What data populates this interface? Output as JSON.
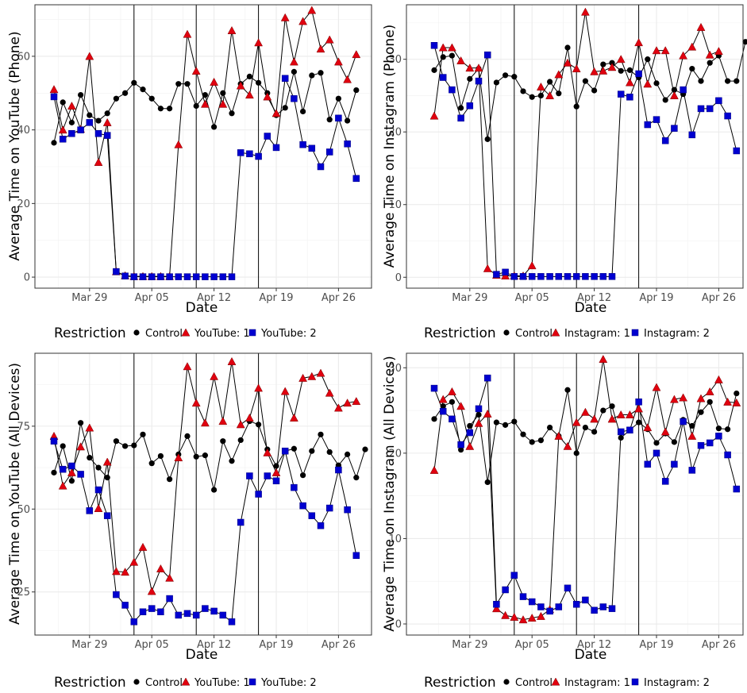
{
  "chart_data": [
    {
      "type": "line",
      "panel": "top-left",
      "xlabel": "Date",
      "ylabel": "Average Time on YouTube (Phone)",
      "ylim": [
        -3,
        74
      ],
      "yticks": [
        0,
        20,
        40,
        60
      ],
      "xticks": [
        "Mar 29",
        "Apr 05",
        "Apr 12",
        "Apr 19",
        "Apr 26"
      ],
      "vlines": [
        "Apr 03",
        "Apr 10",
        "Apr 17"
      ],
      "legend_title": "Restriction",
      "legend_position": "bottom",
      "grid": true,
      "series": [
        {
          "name": "Control",
          "marker": "circle",
          "color": "#000000",
          "values": [
            36.5,
            47.5,
            42,
            49.5,
            44,
            42.5,
            44.5,
            48.5,
            50,
            52.8,
            51,
            48.5,
            45.8,
            45.8,
            52.5,
            52.5,
            46.5,
            49.5,
            40.8,
            50,
            44.5,
            52.5,
            54.5,
            52.8,
            50,
            44,
            46,
            55.8,
            45,
            54.8,
            55.5,
            42.8,
            48.5,
            42.5,
            50.8
          ]
        },
        {
          "name": "YouTube: 1",
          "marker": "triangle",
          "color": "#e0000f",
          "values": [
            51,
            40,
            46.5,
            40.2,
            60,
            31.2,
            42,
            1.5,
            0.4,
            0.2,
            0.2,
            0.2,
            0.2,
            0.2,
            36,
            66,
            56,
            47,
            53,
            47,
            67,
            52,
            49.5,
            63.7,
            49,
            44.5,
            70.5,
            58.5,
            69.5,
            72.5,
            62,
            64.5,
            58.5,
            53.7,
            60.5
          ]
        },
        {
          "name": "YouTube: 2",
          "marker": "square",
          "color": "#0000d0",
          "values": [
            49,
            37.5,
            39,
            40,
            42,
            39,
            38.5,
            1.5,
            0.3,
            0.1,
            0.1,
            0.1,
            0.1,
            0.1,
            0.1,
            0.1,
            0.1,
            0.1,
            0.1,
            0.1,
            0.1,
            33.8,
            33.5,
            32.8,
            38.3,
            35.2,
            54,
            48.5,
            36,
            35,
            30,
            34,
            43.2,
            36.2,
            26.8
          ]
        }
      ]
    },
    {
      "type": "line",
      "panel": "top-right",
      "xlabel": "Date",
      "ylabel": "Average Time on Instagram (Phone)",
      "ylim": [
        -1.5,
        37.5
      ],
      "yticks": [
        0,
        10,
        20,
        30
      ],
      "xticks": [
        "Mar 29",
        "Apr 05",
        "Apr 12",
        "Apr 19",
        "Apr 26"
      ],
      "vlines": [
        "Apr 03",
        "Apr 10",
        "Apr 17"
      ],
      "legend_title": "Restriction",
      "legend_position": "bottom",
      "grid": true,
      "series": [
        {
          "name": "Control",
          "marker": "circle",
          "color": "#000000",
          "values": [
            28.5,
            30.3,
            30.5,
            23.3,
            27.3,
            28.7,
            19,
            26.8,
            27.8,
            27.6,
            25.6,
            24.8,
            25,
            26.9,
            25.3,
            31.6,
            23.5,
            27,
            25.7,
            29.3,
            29.5,
            28.4,
            28.5,
            27.5,
            30,
            26.7,
            24.4,
            25.8,
            25.2,
            28.7,
            27,
            29.5,
            30.5,
            27,
            27,
            32.4
          ]
        },
        {
          "name": "Instagram: 1",
          "marker": "triangle",
          "color": "#e0000f",
          "values": [
            22.2,
            31.6,
            31.6,
            29.8,
            28.8,
            28.8,
            1.2,
            0.3,
            0.2,
            0.2,
            0.2,
            1.6,
            26.2,
            25.0,
            27.9,
            29.5,
            28.7,
            36.5,
            28.3,
            28.4,
            28.9,
            30,
            26.8,
            32.3,
            26.6,
            31.2,
            31.2,
            25,
            30.5,
            31.7,
            34.4,
            30.6,
            31.1
          ]
        },
        {
          "name": "Instagram: 2",
          "marker": "square",
          "color": "#0000d0",
          "values": [
            31.9,
            27.5,
            25.8,
            21.9,
            23.6,
            27,
            30.6,
            0.4,
            0.7,
            0.1,
            0.1,
            0.1,
            0.1,
            0.1,
            0.1,
            0.1,
            0.1,
            0.1,
            0.1,
            0.1,
            0.1,
            25.2,
            24.8,
            28,
            21,
            21.7,
            18.8,
            20.5,
            25.8,
            19.6,
            23.2,
            23.2,
            24.3,
            22.2,
            17.4
          ]
        }
      ]
    },
    {
      "type": "line",
      "panel": "bottom-left",
      "xlabel": "Date",
      "ylabel": "Average Time on YouTube (All Devices)",
      "ylim": [
        12,
        97
      ],
      "yticks": [
        25,
        50,
        75
      ],
      "xticks": [
        "Mar 29",
        "Apr 05",
        "Apr 12",
        "Apr 19",
        "Apr 26"
      ],
      "vlines": [
        "Apr 03",
        "Apr 10",
        "Apr 17"
      ],
      "legend_title": "Restriction",
      "legend_position": "bottom",
      "grid": true,
      "series": [
        {
          "name": "Control",
          "marker": "circle",
          "color": "#000000",
          "values": [
            61,
            69,
            58.5,
            76,
            65.5,
            62.5,
            59.5,
            70.5,
            69,
            69.2,
            72.5,
            63.8,
            66,
            59,
            66.5,
            72,
            65.8,
            66.2,
            55.8,
            70.5,
            64.5,
            70.8,
            76.5,
            75.5,
            68,
            63,
            67.5,
            68.2,
            60.2,
            67.5,
            72.5,
            67.2,
            63.2,
            66.5,
            59.5,
            68
          ]
        },
        {
          "name": "YouTube: 1",
          "marker": "triangle",
          "color": "#e0000f",
          "values": [
            72,
            57,
            61,
            68.8,
            74.5,
            50.2,
            64.2,
            31.2,
            31,
            34,
            38.5,
            25.2,
            32,
            29.2,
            65.5,
            93,
            82,
            76,
            90,
            76.5,
            94.5,
            75.5,
            77.5,
            86.5,
            67,
            61,
            85.5,
            77.5,
            89.5,
            90,
            91,
            85,
            80.5,
            82,
            82.5
          ]
        },
        {
          "name": "YouTube: 2",
          "marker": "square",
          "color": "#0000d0",
          "values": [
            70.5,
            62,
            63,
            60.5,
            49.5,
            55.8,
            48,
            24.2,
            21,
            16,
            19,
            20,
            19,
            23,
            18,
            18.5,
            18,
            20,
            19.2,
            18,
            16,
            46,
            60,
            54.5,
            60,
            58.5,
            67.5,
            56.5,
            51,
            48,
            45,
            50.3,
            61.8,
            49.8,
            36
          ]
        }
      ]
    },
    {
      "type": "line",
      "panel": "bottom-right",
      "xlabel": "Date",
      "ylabel": "Average Time on Instagram (All Devices)",
      "ylim": [
        -1.3,
        31.7
      ],
      "yticks": [
        0,
        10,
        20,
        30
      ],
      "xticks": [
        "Mar 29",
        "Apr 05",
        "Apr 12",
        "Apr 19",
        "Apr 26"
      ],
      "vlines": [
        "Apr 03",
        "Apr 10",
        "Apr 17"
      ],
      "legend_title": "Restriction",
      "legend_position": "bottom",
      "grid": true,
      "series": [
        {
          "name": "Control",
          "marker": "circle",
          "color": "#000000",
          "values": [
            24,
            25.5,
            26,
            20.4,
            23.2,
            24.5,
            16.6,
            23.6,
            23.3,
            23.7,
            22.2,
            21.3,
            21.5,
            23,
            22,
            27.4,
            20,
            23,
            22.5,
            25,
            25.5,
            21.8,
            22.7,
            23.6,
            22.8,
            21.2,
            22.3,
            21.3,
            23.9,
            23.2,
            24.8,
            26,
            22.9,
            22.8,
            27
          ]
        },
        {
          "name": "Instagram: 1",
          "marker": "triangle",
          "color": "#e0000f",
          "values": [
            18,
            26.3,
            27.2,
            25.5,
            20.8,
            23.5,
            24.6,
            1.8,
            1,
            0.8,
            0.5,
            0.7,
            0.9,
            1.7,
            22,
            20.8,
            23.6,
            24.8,
            24,
            31,
            24,
            24.5,
            24.5,
            25.2,
            23,
            27.7,
            22.5,
            26.3,
            26.5,
            22,
            26.4,
            27.2,
            28.6,
            26,
            25.9
          ]
        },
        {
          "name": "Instagram: 2",
          "marker": "square",
          "color": "#0000d0",
          "values": [
            27.6,
            24.9,
            24,
            21,
            22.4,
            25.2,
            28.8,
            2.3,
            4,
            5.7,
            3.2,
            2.6,
            2,
            1.5,
            2,
            4.2,
            2.3,
            2.8,
            1.6,
            2,
            1.8,
            22.5,
            22.7,
            26,
            18.7,
            20,
            16.7,
            18.7,
            23.7,
            18,
            20.9,
            21.2,
            22,
            19.8,
            15.8
          ]
        }
      ]
    }
  ]
}
